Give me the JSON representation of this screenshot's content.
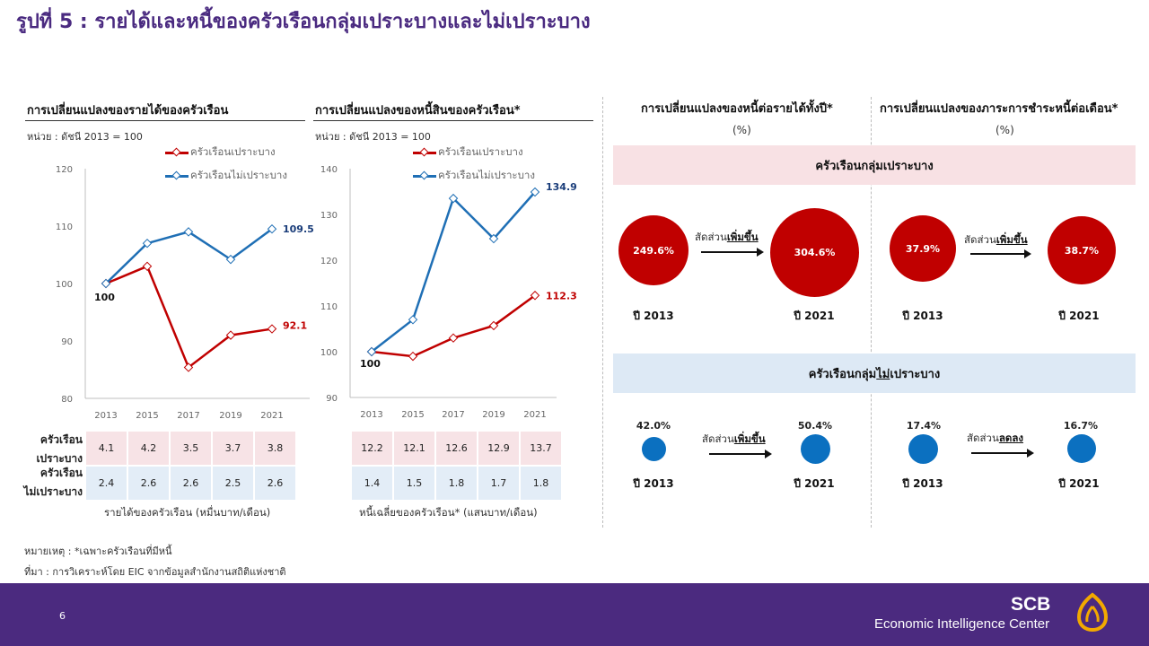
{
  "page": {
    "title": "รูปที่ 5 : รายได้และหนี้ของครัวเรือนกลุ่มเปราะบางและไม่เปราะบาง",
    "page_number": "6",
    "note": "หมายเหตุ : *เฉพาะครัวเรือนที่มีหนี้",
    "source": "ที่มา : การวิเคราะห์โดย EIC จากข้อมูลสำนักงานสถิติแห่งชาติ",
    "brand_top": "SCB",
    "brand_bottom": "Economic Intelligence Center"
  },
  "colors": {
    "vulnerable": "#c00000",
    "non_vulnerable": "#1f6fb5",
    "accent": "#4b2a7f",
    "banner_pink": "#f8e1e4",
    "banner_blue": "#dde9f5",
    "dot_blue": "#0b70c0"
  },
  "chart_data": [
    {
      "type": "line",
      "title": "การเปลี่ยนแปลงของรายได้ของครัวเรือน",
      "subtitle": "หน่วย : ดัชนี 2013 = 100",
      "x": [
        "2013",
        "2015",
        "2017",
        "2019",
        "2021"
      ],
      "ylim": [
        80,
        120
      ],
      "yticks": [
        "80",
        "90",
        "100",
        "110",
        "120"
      ],
      "series": [
        {
          "name": "ครัวเรือนเปราะบาง",
          "values": [
            100,
            103,
            85.4,
            91,
            92.1
          ],
          "color": "#c00000"
        },
        {
          "name": "ครัวเรือนไม่เปราะบาง",
          "values": [
            100,
            107,
            109,
            104.2,
            109.5
          ],
          "color": "#1f6fb5"
        }
      ],
      "labels": {
        "start": "100",
        "end_vulnerable": "92.1",
        "end_non_vulnerable": "109.5"
      },
      "legend": "top-right",
      "table": {
        "row_labels": [
          [
            "ครัวเรือน",
            "เปราะบาง"
          ],
          [
            "ครัวเรือน",
            "ไม่เปราะบาง"
          ]
        ],
        "vulnerable": [
          "4.1",
          "4.2",
          "3.5",
          "3.7",
          "3.8"
        ],
        "non_vulnerable": [
          "2.4",
          "2.6",
          "2.6",
          "2.5",
          "2.6"
        ],
        "caption": "รายได้ของครัวเรือน (หมื่นบาท/เดือน)"
      }
    },
    {
      "type": "line",
      "title": "การเปลี่ยนแปลงของหนี้สินของครัวเรือน*",
      "subtitle": "หน่วย : ดัชนี 2013 = 100",
      "x": [
        "2013",
        "2015",
        "2017",
        "2019",
        "2021"
      ],
      "ylim": [
        90,
        140
      ],
      "yticks": [
        "90",
        "100",
        "110",
        "120",
        "130",
        "140"
      ],
      "series": [
        {
          "name": "ครัวเรือนเปราะบาง",
          "values": [
            100,
            99,
            103,
            105.7,
            112.3
          ],
          "color": "#c00000"
        },
        {
          "name": "ครัวเรือนไม่เปราะบาง",
          "values": [
            100,
            107,
            133.5,
            124.7,
            134.9
          ],
          "color": "#1f6fb5"
        }
      ],
      "labels": {
        "start": "100",
        "end_vulnerable": "112.3",
        "end_non_vulnerable": "134.9"
      },
      "legend": "top-right",
      "table": {
        "vulnerable": [
          "12.2",
          "12.1",
          "12.6",
          "12.9",
          "13.7"
        ],
        "non_vulnerable": [
          "1.4",
          "1.5",
          "1.8",
          "1.7",
          "1.8"
        ],
        "caption": "หนี้เฉลี่ยของครัวเรือน* (แสนบาท/เดือน)"
      }
    }
  ],
  "ratios": {
    "debt_to_income": {
      "title": "การเปลี่ยนแปลงของหนี้ต่อรายได้ทั้งปี*",
      "unit": "(%)"
    },
    "debt_service": {
      "title": "การเปลี่ยนแปลงของภาระการชำระหนี้ต่อเดือน*",
      "unit": "(%)"
    },
    "vulnerable": {
      "banner": "ครัวเรือนกลุ่มเปราะบาง",
      "dti_2013": "249.6%",
      "dti_2021": "304.6%",
      "dti_change_prefix": "สัดส่วน",
      "dti_change": "เพิ่มขึ้น",
      "dsr_2013": "37.9%",
      "dsr_2021": "38.7%",
      "dsr_change_prefix": "สัดส่วน",
      "dsr_change": "เพิ่มขึ้น"
    },
    "non_vulnerable": {
      "banner_pre": "ครัวเรือนกลุ่ม",
      "banner_em": "ไม่",
      "banner_post": "เปราะบาง",
      "dti_2013": "42.0%",
      "dti_2021": "50.4%",
      "dti_change_prefix": "สัดส่วน",
      "dti_change": "เพิ่มขึ้น",
      "dsr_2013": "17.4%",
      "dsr_2021": "16.7%",
      "dsr_change_prefix": "สัดส่วน",
      "dsr_change": "ลดลง"
    },
    "year_2013": "ปี 2013",
    "year_2021": "ปี 2021"
  }
}
